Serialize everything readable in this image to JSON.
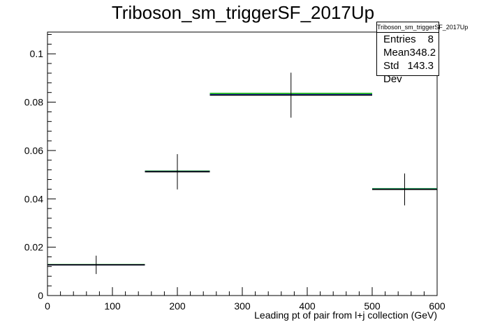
{
  "chart_data": {
    "type": "histogram",
    "title": "Triboson_sm_triggerSF_2017Up",
    "xlabel": "Leading pt of pair from l+j collection (GeV)",
    "ylabel": "",
    "xlim": [
      0,
      600
    ],
    "ylim": [
      0,
      0.109
    ],
    "x_ticks": [
      0,
      100,
      200,
      300,
      400,
      500,
      600
    ],
    "y_ticks": [
      0,
      0.02,
      0.04,
      0.06,
      0.08,
      0.1
    ],
    "x_tick_labels": [
      "0",
      "100",
      "200",
      "300",
      "400",
      "500",
      "600"
    ],
    "y_tick_labels": [
      "0",
      "0.02",
      "0.04",
      "0.06",
      "0.08",
      "0.1"
    ],
    "grid": false,
    "bins": [
      {
        "xlow": 0,
        "xhigh": 150,
        "xcenter": 75,
        "value": 0.0127,
        "error": 0.0038
      },
      {
        "xlow": 150,
        "xhigh": 250,
        "xcenter": 200,
        "value": 0.0512,
        "error": 0.0073
      },
      {
        "xlow": 250,
        "xhigh": 500,
        "xcenter": 375,
        "value": 0.0829,
        "error": 0.0093
      },
      {
        "xlow": 500,
        "xhigh": 600,
        "xcenter": 550,
        "value": 0.0439,
        "error": 0.0066
      }
    ],
    "series": [
      {
        "color": "#00aa00",
        "values": [
          0.0128,
          0.0515,
          0.0836,
          0.0442
        ]
      },
      {
        "color": "#2222cc",
        "values": [
          0.0127,
          0.0513,
          0.0831,
          0.044
        ]
      },
      {
        "color": "#000000",
        "values": [
          0.0127,
          0.0512,
          0.0829,
          0.0439
        ]
      }
    ],
    "stats": {
      "name": "Triboson_sm_triggerSF_2017Up",
      "rows": [
        {
          "label": "Entries",
          "value": "8"
        },
        {
          "label": "Mean",
          "value": "348.2"
        },
        {
          "label": "Std Dev",
          "value": "143.3"
        }
      ]
    }
  }
}
